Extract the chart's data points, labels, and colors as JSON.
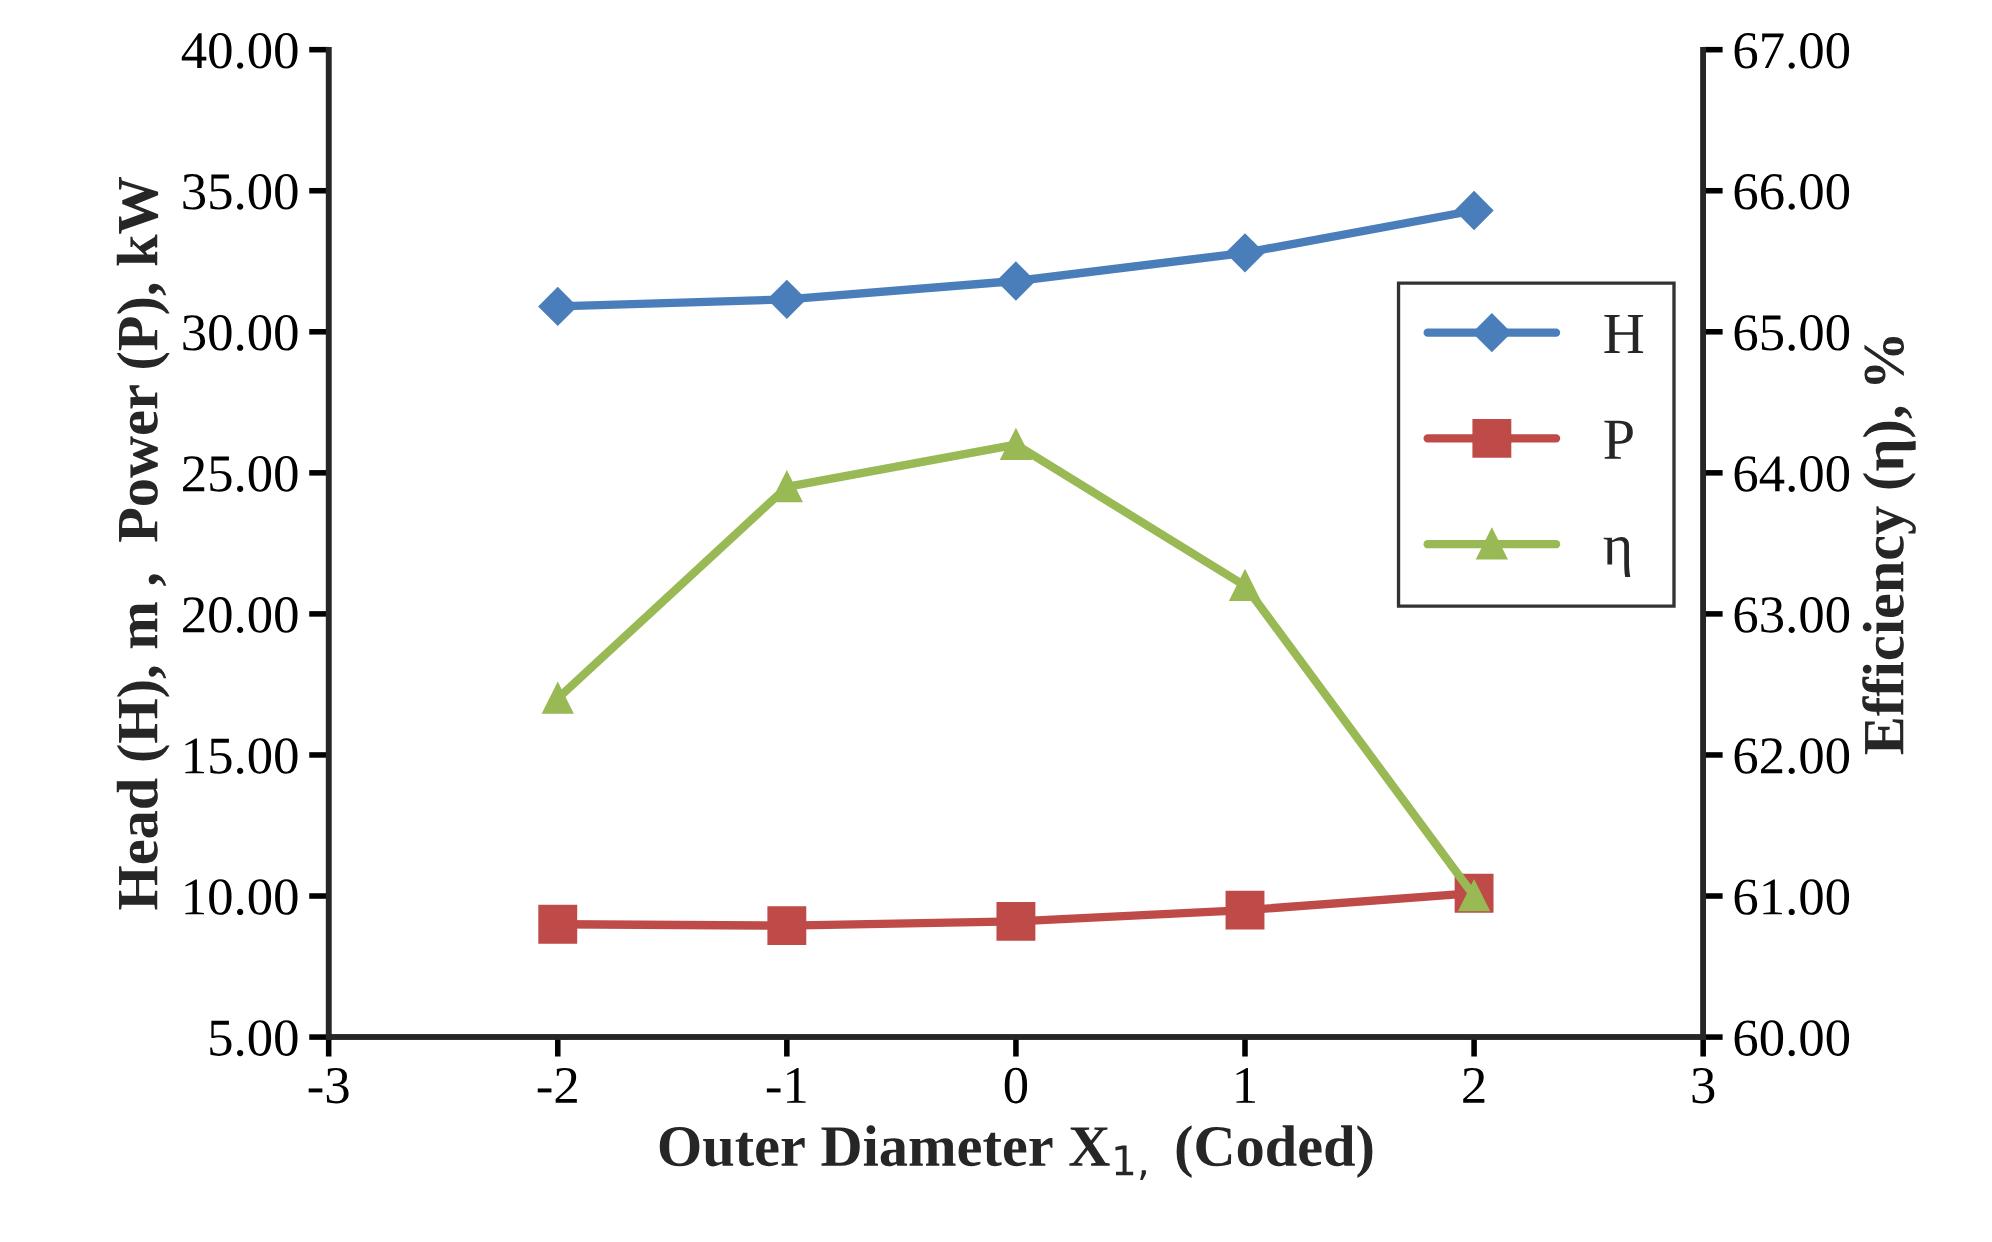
{
  "chart_data": {
    "type": "line",
    "xlabel": "Outer Diameter X$_{1,}$ (Coded)",
    "ylabel": "Head (H), m ,  Power (P), kW",
    "y2label": "Efficiency (η), %",
    "x": [
      -2,
      -1,
      0,
      1,
      2
    ],
    "series": [
      {
        "name": "H",
        "color": "#4a7ebb",
        "marker": "diamond",
        "values": [
          30.9,
          31.15,
          31.8,
          32.8,
          34.3
        ]
      },
      {
        "name": "P",
        "color": "#be4b48",
        "marker": "square",
        "values": [
          9.0,
          8.95,
          9.1,
          9.5,
          10.1
        ]
      },
      {
        "name": "η",
        "color": "#98b954",
        "marker": "triangle",
        "axis": "y2",
        "values": [
          62.4,
          63.9,
          64.2,
          63.2,
          61.0
        ]
      }
    ],
    "xlim": [
      -3,
      3
    ],
    "xticks": [
      -3,
      -2,
      -1,
      0,
      1,
      2,
      3
    ],
    "ylim": [
      5,
      40
    ],
    "yticks": [
      {
        "value": 5,
        "label": "5.00"
      },
      {
        "value": 10,
        "label": "10.00"
      },
      {
        "value": 15,
        "label": "15.00"
      },
      {
        "value": 20,
        "label": "20.00"
      },
      {
        "value": 25,
        "label": "25.00"
      },
      {
        "value": 30,
        "label": "30.00"
      },
      {
        "value": 35,
        "label": "35.00"
      },
      {
        "value": 40,
        "label": "40.00"
      }
    ],
    "y2lim": [
      60,
      67
    ],
    "y2ticks": [
      {
        "value": 60,
        "label": "60.00"
      },
      {
        "value": 61,
        "label": "61.00"
      },
      {
        "value": 62,
        "label": "62.00"
      },
      {
        "value": 63,
        "label": "63.00"
      },
      {
        "value": 64,
        "label": "64.00"
      },
      {
        "value": 65,
        "label": "65.00"
      },
      {
        "value": 66,
        "label": "66.00"
      },
      {
        "value": 67,
        "label": "67.00"
      }
    ],
    "legend": "right",
    "grid": false
  }
}
